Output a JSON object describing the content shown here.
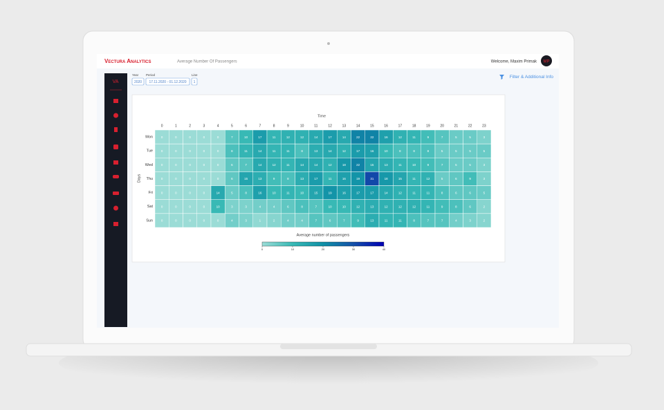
{
  "header": {
    "brand": "Vectura Analytics",
    "page_title": "Average Number Of Passengers",
    "welcome": "Welcome, Maxim Primak",
    "avatar": "MP"
  },
  "sidebar": {
    "logo": "VA"
  },
  "filters": {
    "year": {
      "label": "Year",
      "value": "2020"
    },
    "period": {
      "label": "Period",
      "value": "17.11.2020 - 01.12.2020"
    },
    "line": {
      "label": "Line",
      "value": "1"
    },
    "filter_link": "Filter & Additional Info"
  },
  "chart_data": {
    "type": "heatmap",
    "x_label": "Time",
    "y_label": "Days",
    "x": [
      0,
      1,
      2,
      3,
      4,
      5,
      6,
      7,
      8,
      9,
      10,
      11,
      12,
      13,
      14,
      15,
      16,
      17,
      18,
      19,
      20,
      21,
      22,
      23
    ],
    "y": [
      "Mon",
      "Tue",
      "Wed",
      "Thu",
      "Fri",
      "Sat",
      "Sun"
    ],
    "values": [
      [
        0,
        0,
        0,
        0,
        0,
        7,
        10,
        17,
        11,
        12,
        12,
        14,
        17,
        14,
        22,
        22,
        16,
        12,
        11,
        9,
        7,
        5,
        5,
        3
      ],
      [
        0,
        0,
        0,
        0,
        0,
        8,
        11,
        14,
        11,
        11,
        8,
        13,
        14,
        12,
        17,
        16,
        10,
        8,
        8,
        8,
        5,
        5,
        5,
        5
      ],
      [
        0,
        0,
        0,
        0,
        0,
        6,
        7,
        14,
        12,
        11,
        14,
        14,
        12,
        18,
        22,
        15,
        13,
        11,
        10,
        9,
        7,
        5,
        5,
        3
      ],
      [
        0,
        0,
        0,
        0,
        0,
        6,
        15,
        13,
        9,
        8,
        13,
        17,
        11,
        16,
        19,
        31,
        18,
        15,
        11,
        12,
        5,
        6,
        9,
        3
      ],
      [
        0,
        0,
        0,
        0,
        14,
        5,
        8,
        16,
        10,
        11,
        10,
        15,
        19,
        16,
        17,
        17,
        14,
        12,
        11,
        11,
        8,
        6,
        6,
        5
      ],
      [
        0,
        0,
        0,
        0,
        10,
        3,
        3,
        4,
        4,
        6,
        8,
        7,
        10,
        10,
        12,
        13,
        12,
        12,
        12,
        11,
        9,
        8,
        6,
        2
      ],
      [
        0,
        0,
        0,
        0,
        0,
        4,
        3,
        1,
        2,
        4,
        4,
        7,
        6,
        7,
        9,
        13,
        11,
        11,
        8,
        7,
        7,
        4,
        3,
        2
      ]
    ],
    "colors": [
      "#9bdcd6",
      "#38b9b5",
      "#0f90a6",
      "#1450a8",
      "#0000b4"
    ],
    "colorbar": {
      "title": "Average number of passengers",
      "lim": [
        0,
        40
      ],
      "ticks": [
        0,
        10,
        20,
        30,
        40
      ]
    }
  }
}
